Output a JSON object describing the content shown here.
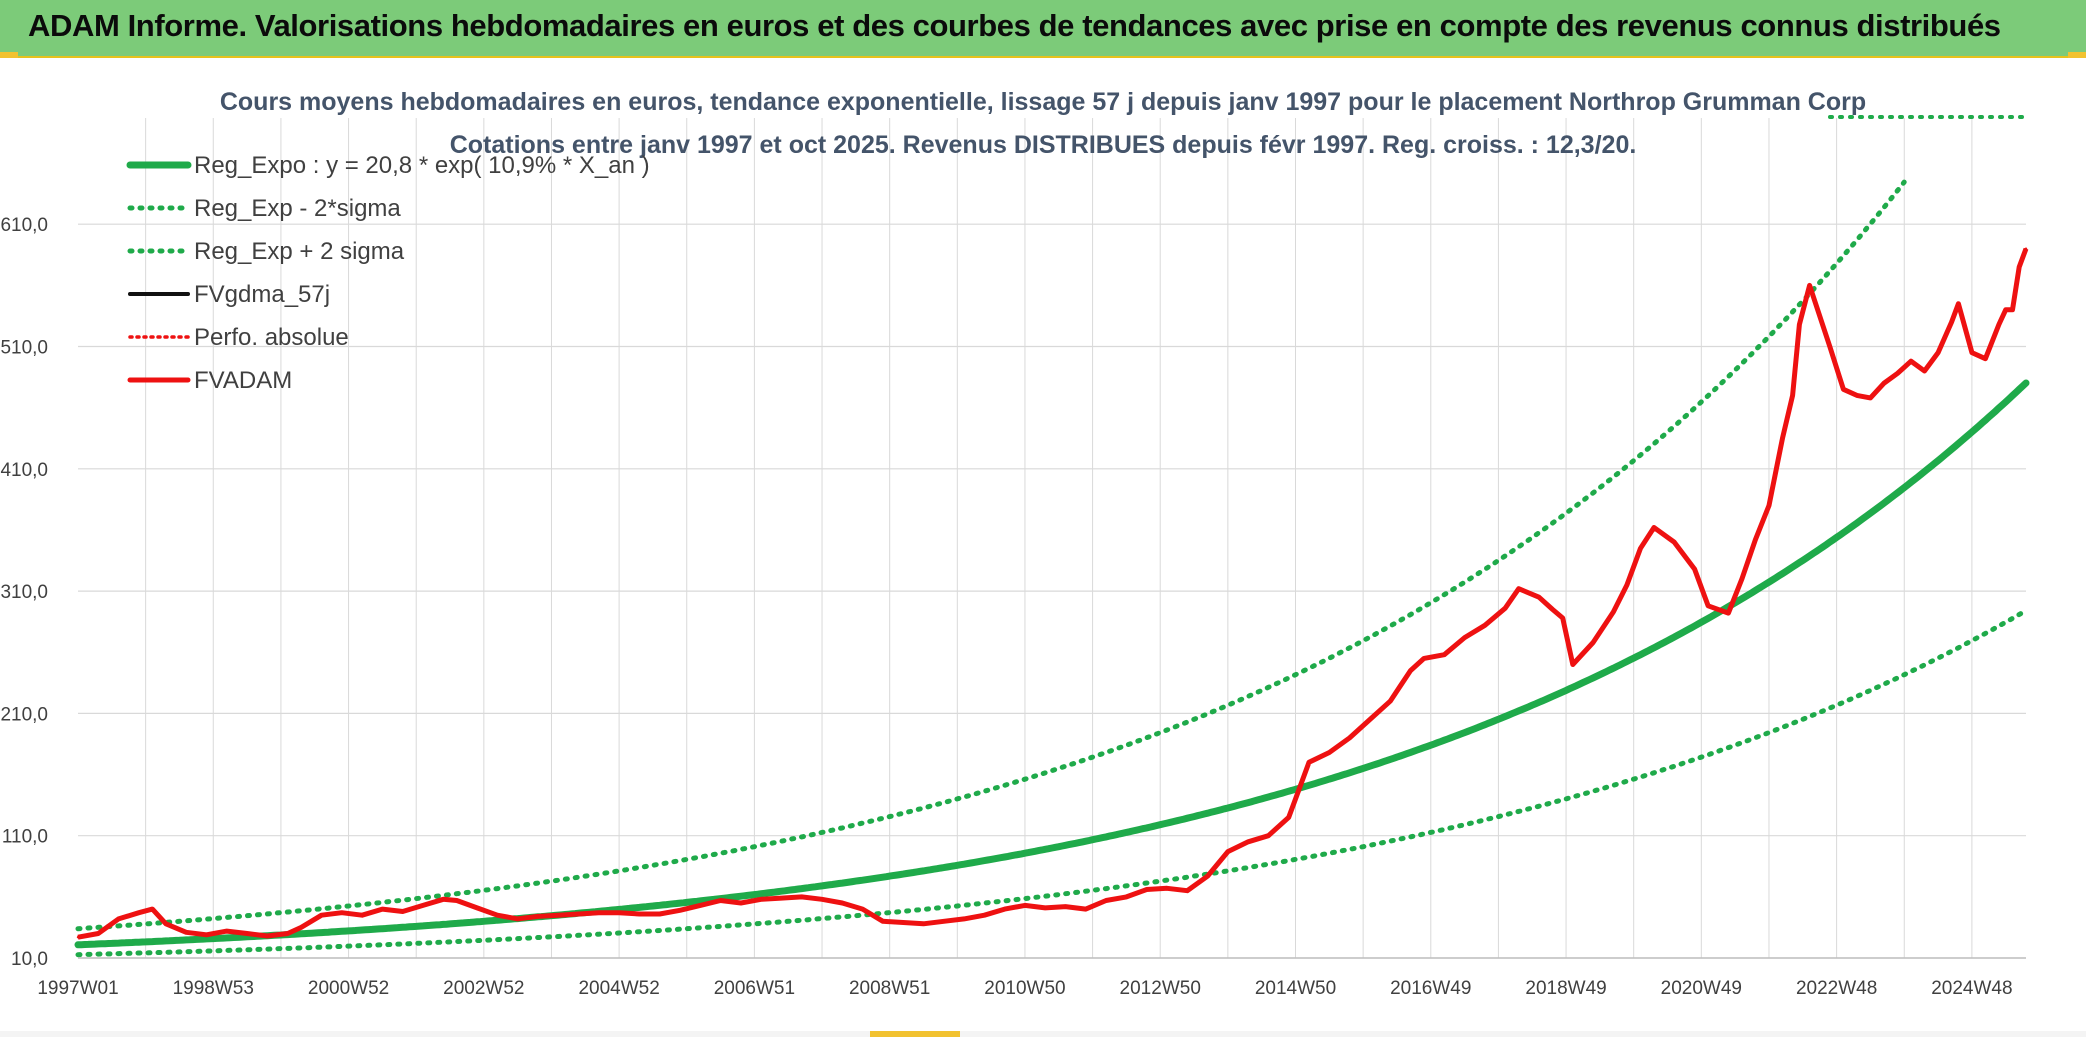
{
  "header": {
    "title": "ADAM Informe. Valorisations hebdomadaires en euros et des courbes de tendances avec prise en compte des revenus connus distribués"
  },
  "colors": {
    "header_bg": "#7ccb79",
    "accent": "#f2c230",
    "trend_green": "#1faa4a",
    "price_red": "#ee1111",
    "smooth_black": "#111111",
    "grid": "#d9d9d9"
  },
  "chart_data": {
    "type": "line",
    "title": "Cours moyens hebdomadaires en euros, tendance exponentielle, lissage 57 j depuis janv 1997 pour le placement Northrop Grumman Corp",
    "subtitle": "Cotations entre janv 1997 et oct 2025. Revenus DISTRIBUES depuis févr 1997. Reg. croiss. : 12,3/20.",
    "xlabel": "",
    "ylabel": "",
    "xlim": [
      1997.0,
      2025.8
    ],
    "ylim": [
      10,
      660
    ],
    "y_ticks": [
      "10,0",
      "110,0",
      "210,0",
      "310,0",
      "410,0",
      "510,0",
      "610,0"
    ],
    "y_tick_values": [
      10,
      110,
      210,
      310,
      410,
      510,
      610
    ],
    "x_ticks": [
      "1997W01",
      "1998W53",
      "2000W52",
      "2002W52",
      "2004W52",
      "2006W51",
      "2008W51",
      "2010W50",
      "2012W50",
      "2014W50",
      "2016W49",
      "2018W49",
      "2020W49",
      "2022W48",
      "2024W48"
    ],
    "x_tick_years": [
      1997.0,
      1999.0,
      2001.0,
      2003.0,
      2005.0,
      2007.0,
      2009.0,
      2011.0,
      2013.0,
      2015.0,
      2017.0,
      2019.0,
      2021.0,
      2023.0,
      2025.0
    ],
    "grid": true,
    "legend_position": "top-left",
    "trend": {
      "a": 20.8,
      "rate": 0.109,
      "sigma_factor": 1.633
    },
    "series": [
      {
        "name": "Reg_Expo : y = 20,8 * exp( 10,9% *  X_an )",
        "style": "solid-thick",
        "color": "#1faa4a"
      },
      {
        "name": "Reg_Exp - 2*sigma",
        "style": "dotted",
        "color": "#1faa4a"
      },
      {
        "name": "Reg_Exp + 2 sigma",
        "style": "dotted",
        "color": "#1faa4a"
      },
      {
        "name": "FVgdma_57j",
        "style": "solid",
        "color": "#111111"
      },
      {
        "name": "Perfo. absolue",
        "style": "dotted",
        "color": "#ee1111"
      },
      {
        "name": "FVADAM",
        "style": "solid-thick",
        "color": "#ee1111",
        "x": [
          1997.0,
          1997.3,
          1997.6,
          1997.9,
          1998.1,
          1998.3,
          1998.6,
          1998.9,
          1999.2,
          1999.5,
          1999.8,
          2000.1,
          2000.3,
          2000.6,
          2000.9,
          2001.2,
          2001.5,
          2001.8,
          2002.1,
          2002.4,
          2002.6,
          2002.9,
          2003.2,
          2003.5,
          2003.8,
          2004.1,
          2004.4,
          2004.7,
          2005.0,
          2005.3,
          2005.6,
          2005.9,
          2006.2,
          2006.5,
          2006.8,
          2007.1,
          2007.4,
          2007.7,
          2008.0,
          2008.3,
          2008.6,
          2008.9,
          2009.2,
          2009.5,
          2009.8,
          2010.1,
          2010.4,
          2010.7,
          2011.0,
          2011.3,
          2011.6,
          2011.9,
          2012.2,
          2012.5,
          2012.8,
          2013.1,
          2013.4,
          2013.7,
          2014.0,
          2014.3,
          2014.6,
          2014.9,
          2015.0,
          2015.2,
          2015.5,
          2015.8,
          2016.1,
          2016.4,
          2016.7,
          2016.9,
          2017.2,
          2017.5,
          2017.8,
          2018.1,
          2018.3,
          2018.6,
          2018.8,
          2018.95,
          2019.1,
          2019.4,
          2019.7,
          2019.9,
          2020.1,
          2020.3,
          2020.6,
          2020.9,
          2021.1,
          2021.4,
          2021.6,
          2021.8,
          2022.0,
          2022.2,
          2022.35,
          2022.45,
          2022.6,
          2022.9,
          2023.1,
          2023.3,
          2023.5,
          2023.7,
          2023.9,
          2024.1,
          2024.3,
          2024.5,
          2024.7,
          2024.8,
          2025.0,
          2025.2,
          2025.4,
          2025.5,
          2025.6,
          2025.7,
          2025.8
        ],
        "values": [
          27,
          30,
          42,
          47,
          50,
          38,
          31,
          29,
          32,
          30,
          28,
          30,
          35,
          45,
          47,
          45,
          50,
          48,
          53,
          58,
          57,
          51,
          45,
          42,
          44,
          45,
          46,
          47,
          47,
          46,
          46,
          49,
          53,
          57,
          55,
          58,
          59,
          60,
          58,
          55,
          50,
          40,
          39,
          38,
          40,
          42,
          45,
          50,
          53,
          51,
          52,
          50,
          57,
          60,
          66,
          67,
          65,
          77,
          97,
          105,
          110,
          125,
          140,
          170,
          178,
          190,
          205,
          220,
          245,
          255,
          258,
          272,
          282,
          296,
          312,
          305,
          295,
          288,
          250,
          268,
          293,
          315,
          345,
          362,
          350,
          328,
          298,
          292,
          320,
          352,
          380,
          435,
          470,
          528,
          560,
          510,
          475,
          470,
          468,
          480,
          488,
          498,
          490,
          505,
          530,
          545,
          505,
          500,
          528,
          540,
          540,
          575,
          590
        ]
      }
    ]
  }
}
